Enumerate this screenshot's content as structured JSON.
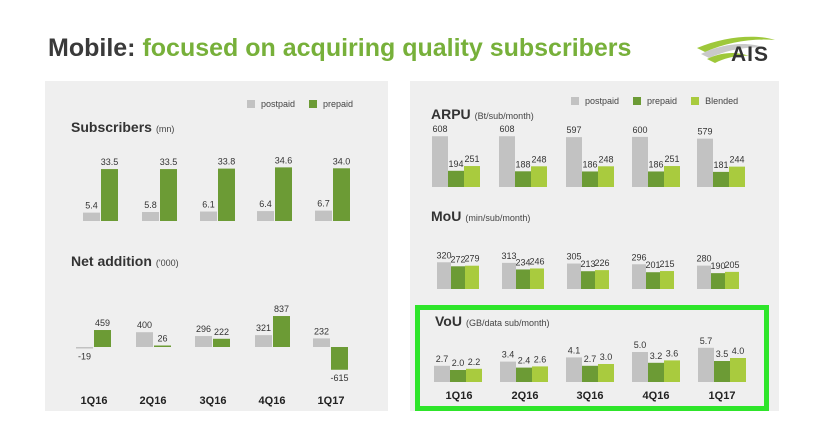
{
  "slide": {
    "title_lead": "Mobile:",
    "title_rest": "focused on acquiring quality subscribers",
    "logo_text": "AIS"
  },
  "colors": {
    "postpaid": "#c2c2c2",
    "prepaid": "#6c9b35",
    "blended": "#a9cb3e",
    "title_green": "#77b03a",
    "highlight": "#2ee52a",
    "panel": "#efefef"
  },
  "legend_left": [
    "postpaid",
    "prepaid"
  ],
  "legend_right": [
    "postpaid",
    "prepaid",
    "Blended"
  ],
  "chart_data": [
    {
      "type": "bar",
      "title": "Subscribers",
      "unit": "(mn)",
      "categories": [
        "1Q16",
        "2Q16",
        "3Q16",
        "4Q16",
        "1Q17"
      ],
      "series": [
        {
          "name": "postpaid",
          "values": [
            5.4,
            5.8,
            6.1,
            6.4,
            6.7
          ],
          "labels": [
            "5.4",
            "5.8",
            "6.1",
            "6.4",
            "6.7"
          ]
        },
        {
          "name": "prepaid",
          "values": [
            33.5,
            33.5,
            33.8,
            34.6,
            34.0
          ],
          "labels": [
            "33.5",
            "33.5",
            "33.8",
            "34.6",
            "34.0"
          ]
        }
      ]
    },
    {
      "type": "bar",
      "title": "Net addition",
      "unit": "('000)",
      "categories": [
        "1Q16",
        "2Q16",
        "3Q16",
        "4Q16",
        "1Q17"
      ],
      "series": [
        {
          "name": "postpaid",
          "values": [
            -19,
            400,
            296,
            321,
            232
          ],
          "labels": [
            "-19",
            "400",
            "296",
            "321",
            "232"
          ]
        },
        {
          "name": "prepaid",
          "values": [
            459,
            26,
            222,
            837,
            -615
          ],
          "labels": [
            "459",
            "26",
            "222",
            "837",
            "-615"
          ]
        }
      ]
    },
    {
      "type": "bar",
      "title": "ARPU",
      "unit": "(Bt/sub/month)",
      "categories": [
        "1Q16",
        "2Q16",
        "3Q16",
        "4Q16",
        "1Q17"
      ],
      "series": [
        {
          "name": "postpaid",
          "values": [
            608,
            608,
            597,
            600,
            579
          ],
          "labels": [
            "608",
            "608",
            "597",
            "600",
            "579"
          ]
        },
        {
          "name": "prepaid",
          "values": [
            194,
            188,
            186,
            186,
            181
          ],
          "labels": [
            "194",
            "188",
            "186",
            "186",
            "181"
          ]
        },
        {
          "name": "Blended",
          "values": [
            251,
            248,
            248,
            251,
            244
          ],
          "labels": [
            "251",
            "248",
            "248",
            "251",
            "244"
          ]
        }
      ]
    },
    {
      "type": "bar",
      "title": "MoU",
      "unit": "(min/sub/month)",
      "categories": [
        "1Q16",
        "2Q16",
        "3Q16",
        "4Q16",
        "1Q17"
      ],
      "series": [
        {
          "name": "postpaid",
          "values": [
            320,
            313,
            305,
            296,
            280
          ],
          "labels": [
            "320",
            "313",
            "305",
            "296",
            "280"
          ]
        },
        {
          "name": "prepaid",
          "values": [
            272,
            234,
            213,
            201,
            190
          ],
          "labels": [
            "272",
            "234",
            "213",
            "201",
            "190"
          ]
        },
        {
          "name": "Blended",
          "values": [
            279,
            246,
            226,
            215,
            205
          ],
          "labels": [
            "279",
            "246",
            "226",
            "215",
            "205"
          ]
        }
      ]
    },
    {
      "type": "bar",
      "title": "VoU",
      "unit": "(GB/data sub/month)",
      "categories": [
        "1Q16",
        "2Q16",
        "3Q16",
        "4Q16",
        "1Q17"
      ],
      "series": [
        {
          "name": "postpaid",
          "values": [
            2.7,
            3.4,
            4.1,
            5.0,
            5.7
          ],
          "labels": [
            "2.7",
            "3.4",
            "4.1",
            "5.0",
            "5.7"
          ]
        },
        {
          "name": "prepaid",
          "values": [
            2.0,
            2.4,
            2.7,
            3.2,
            3.5
          ],
          "labels": [
            "2.0",
            "2.4",
            "2.7",
            "3.2",
            "3.5"
          ]
        },
        {
          "name": "Blended",
          "values": [
            2.2,
            2.6,
            3.0,
            3.6,
            4.0
          ],
          "labels": [
            "2.2",
            "2.6",
            "3.0",
            "3.6",
            "4.0"
          ]
        }
      ]
    }
  ]
}
